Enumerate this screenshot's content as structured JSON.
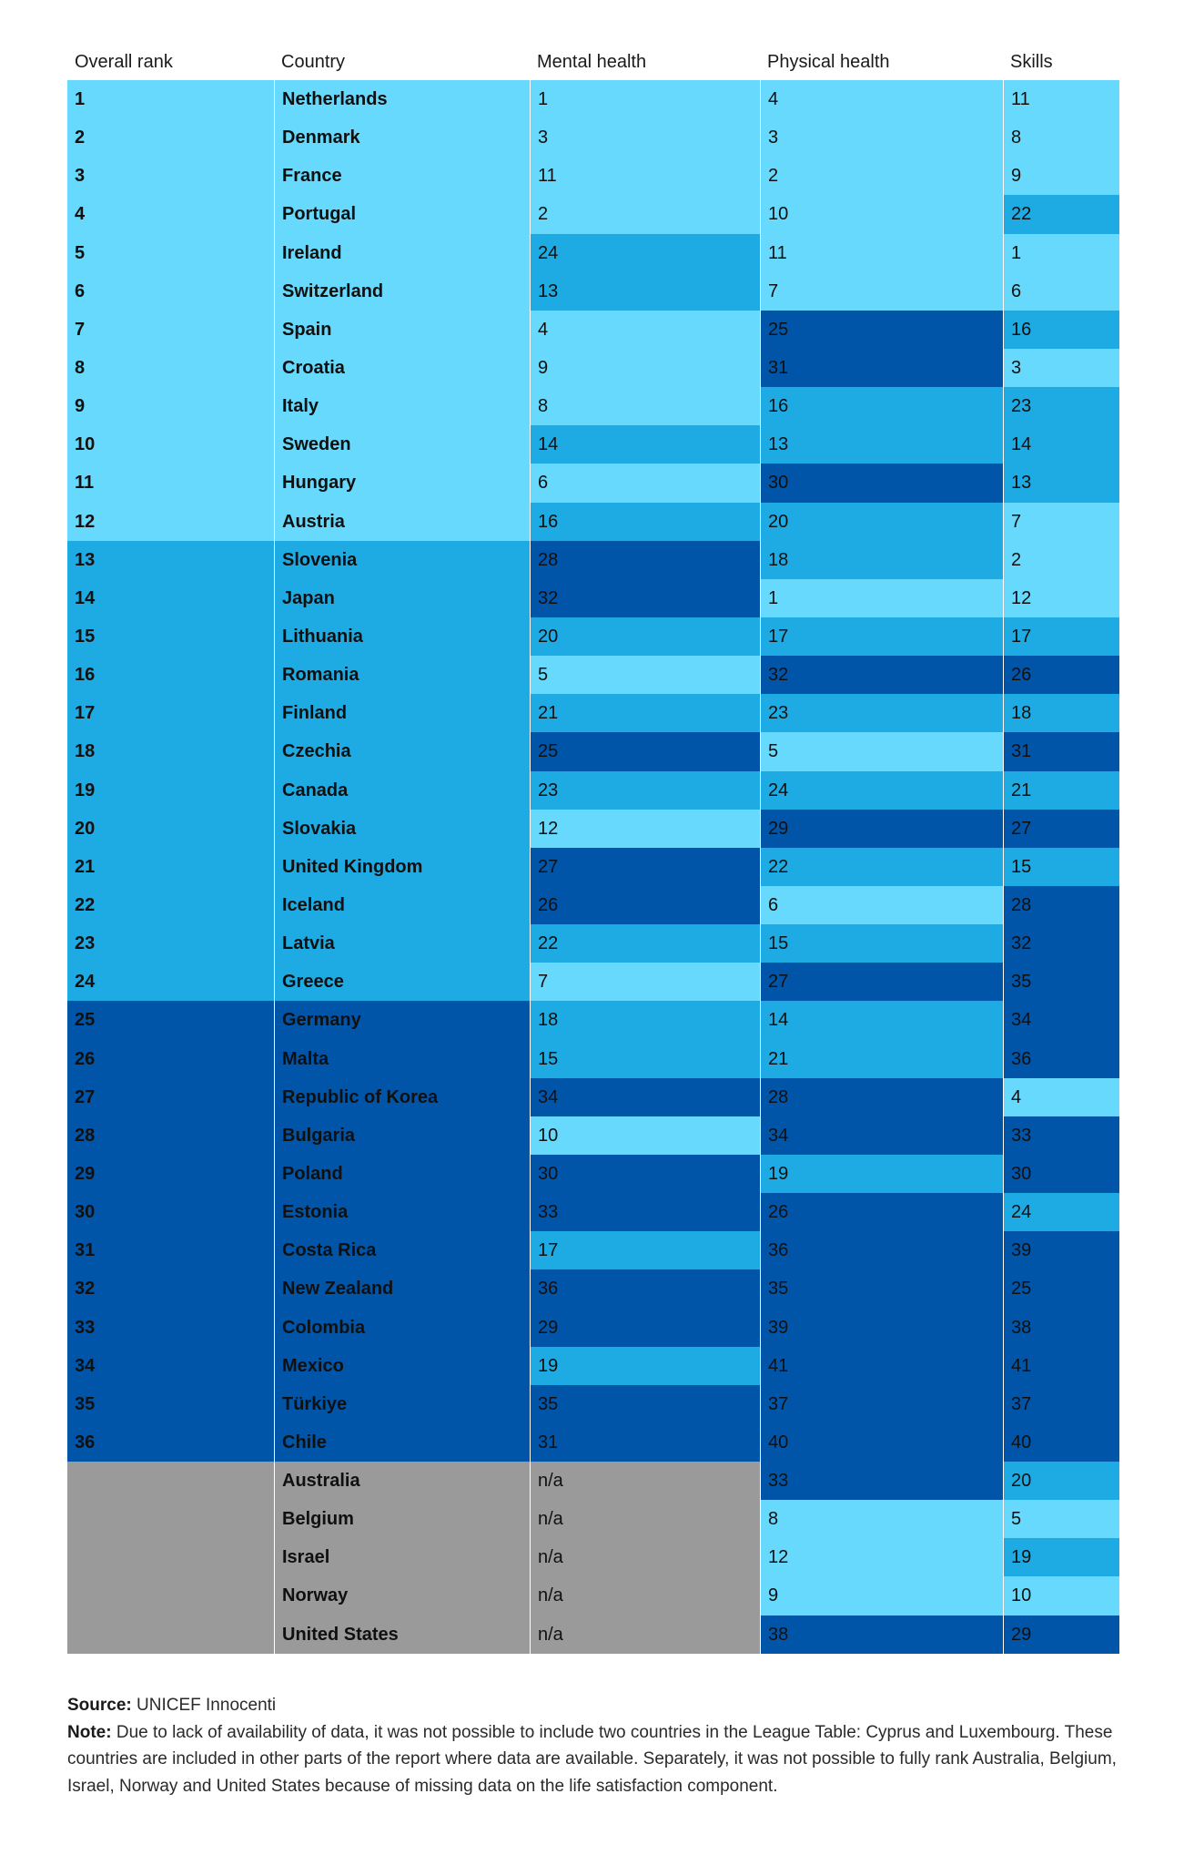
{
  "colors": {
    "tier1": "#66d9fc",
    "tier2": "#1eabe3",
    "tier3": "#0055a9",
    "na": "#9a9a9a"
  },
  "chart_data": {
    "type": "table",
    "columns": [
      "Overall rank",
      "Country",
      "Mental health",
      "Physical health",
      "Skills"
    ],
    "rows": [
      {
        "rank": "1",
        "country": "Netherlands",
        "mental": "1",
        "physical": "4",
        "skills": "11"
      },
      {
        "rank": "2",
        "country": "Denmark",
        "mental": "3",
        "physical": "3",
        "skills": "8"
      },
      {
        "rank": "3",
        "country": "France",
        "mental": "11",
        "physical": "2",
        "skills": "9"
      },
      {
        "rank": "4",
        "country": "Portugal",
        "mental": "2",
        "physical": "10",
        "skills": "22"
      },
      {
        "rank": "5",
        "country": "Ireland",
        "mental": "24",
        "physical": "11",
        "skills": "1"
      },
      {
        "rank": "6",
        "country": "Switzerland",
        "mental": "13",
        "physical": "7",
        "skills": "6"
      },
      {
        "rank": "7",
        "country": "Spain",
        "mental": "4",
        "physical": "25",
        "skills": "16"
      },
      {
        "rank": "8",
        "country": "Croatia",
        "mental": "9",
        "physical": "31",
        "skills": "3"
      },
      {
        "rank": "9",
        "country": "Italy",
        "mental": "8",
        "physical": "16",
        "skills": "23"
      },
      {
        "rank": "10",
        "country": "Sweden",
        "mental": "14",
        "physical": "13",
        "skills": "14"
      },
      {
        "rank": "11",
        "country": "Hungary",
        "mental": "6",
        "physical": "30",
        "skills": "13"
      },
      {
        "rank": "12",
        "country": "Austria",
        "mental": "16",
        "physical": "20",
        "skills": "7"
      },
      {
        "rank": "13",
        "country": "Slovenia",
        "mental": "28",
        "physical": "18",
        "skills": "2"
      },
      {
        "rank": "14",
        "country": "Japan",
        "mental": "32",
        "physical": "1",
        "skills": "12"
      },
      {
        "rank": "15",
        "country": "Lithuania",
        "mental": "20",
        "physical": "17",
        "skills": "17"
      },
      {
        "rank": "16",
        "country": "Romania",
        "mental": "5",
        "physical": "32",
        "skills": "26"
      },
      {
        "rank": "17",
        "country": "Finland",
        "mental": "21",
        "physical": "23",
        "skills": "18"
      },
      {
        "rank": "18",
        "country": "Czechia",
        "mental": "25",
        "physical": "5",
        "skills": "31"
      },
      {
        "rank": "19",
        "country": "Canada",
        "mental": "23",
        "physical": "24",
        "skills": "21"
      },
      {
        "rank": "20",
        "country": "Slovakia",
        "mental": "12",
        "physical": "29",
        "skills": "27"
      },
      {
        "rank": "21",
        "country": "United Kingdom",
        "mental": "27",
        "physical": "22",
        "skills": "15"
      },
      {
        "rank": "22",
        "country": "Iceland",
        "mental": "26",
        "physical": "6",
        "skills": "28"
      },
      {
        "rank": "23",
        "country": "Latvia",
        "mental": "22",
        "physical": "15",
        "skills": "32"
      },
      {
        "rank": "24",
        "country": "Greece",
        "mental": "7",
        "physical": "27",
        "skills": "35"
      },
      {
        "rank": "25",
        "country": "Germany",
        "mental": "18",
        "physical": "14",
        "skills": "34"
      },
      {
        "rank": "26",
        "country": "Malta",
        "mental": "15",
        "physical": "21",
        "skills": "36"
      },
      {
        "rank": "27",
        "country": "Republic of Korea",
        "mental": "34",
        "physical": "28",
        "skills": "4"
      },
      {
        "rank": "28",
        "country": "Bulgaria",
        "mental": "10",
        "physical": "34",
        "skills": "33"
      },
      {
        "rank": "29",
        "country": "Poland",
        "mental": "30",
        "physical": "19",
        "skills": "30"
      },
      {
        "rank": "30",
        "country": "Estonia",
        "mental": "33",
        "physical": "26",
        "skills": "24"
      },
      {
        "rank": "31",
        "country": "Costa Rica",
        "mental": "17",
        "physical": "36",
        "skills": "39"
      },
      {
        "rank": "32",
        "country": "New Zealand",
        "mental": "36",
        "physical": "35",
        "skills": "25"
      },
      {
        "rank": "33",
        "country": "Colombia",
        "mental": "29",
        "physical": "39",
        "skills": "38"
      },
      {
        "rank": "34",
        "country": "Mexico",
        "mental": "19",
        "physical": "41",
        "skills": "41"
      },
      {
        "rank": "35",
        "country": "Türkiye",
        "mental": "35",
        "physical": "37",
        "skills": "37"
      },
      {
        "rank": "36",
        "country": "Chile",
        "mental": "31",
        "physical": "40",
        "skills": "40"
      },
      {
        "rank": "",
        "country": "Australia",
        "mental": "n/a",
        "physical": "33",
        "skills": "20"
      },
      {
        "rank": "",
        "country": "Belgium",
        "mental": "n/a",
        "physical": "8",
        "skills": "5"
      },
      {
        "rank": "",
        "country": "Israel",
        "mental": "n/a",
        "physical": "12",
        "skills": "19"
      },
      {
        "rank": "",
        "country": "Norway",
        "mental": "n/a",
        "physical": "9",
        "skills": "10"
      },
      {
        "rank": "",
        "country": "United States",
        "mental": "n/a",
        "physical": "38",
        "skills": "29"
      }
    ]
  },
  "footer": {
    "source_label": "Source:",
    "source_text": "UNICEF Innocenti",
    "note_label": "Note:",
    "note_text": "Due to lack of availability of data, it was not possible to include two countries in the League Table: Cyprus and Luxembourg. These countries are included in other parts of the report where data are available. Separately, it was not possible to fully rank Australia, Belgium, Israel, Norway and United States because of missing data on the life satisfaction component."
  }
}
